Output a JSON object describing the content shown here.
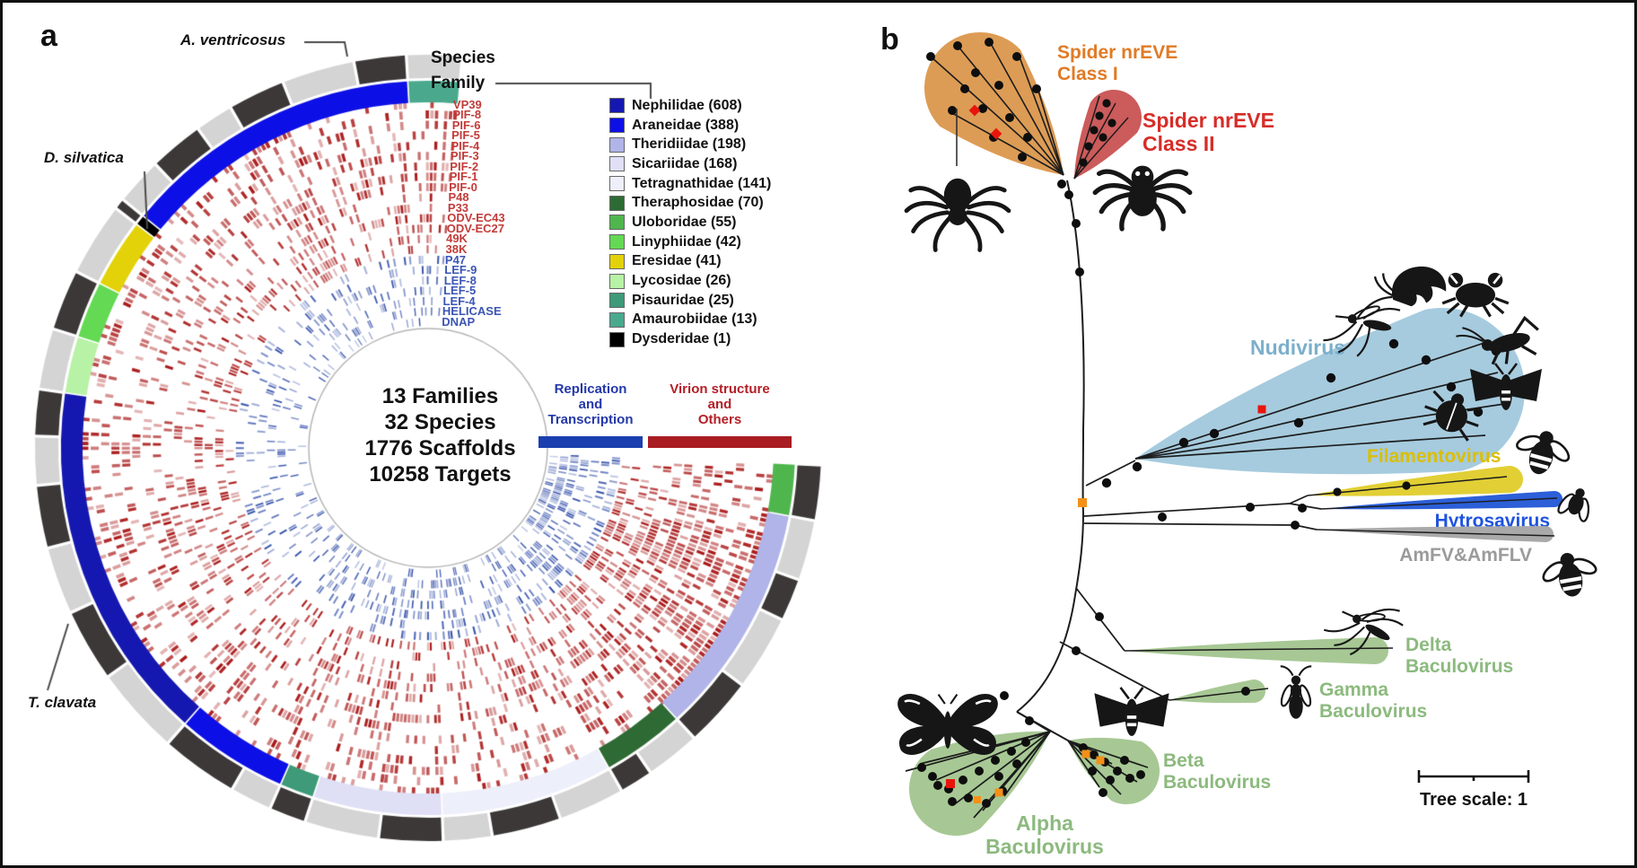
{
  "panel_a": {
    "label": "a",
    "ring_labels": {
      "species": "Species",
      "family": "Family"
    },
    "callouts": [
      {
        "id": "a_ventricosus",
        "label": "A. ventricosus"
      },
      {
        "id": "d_silvatica",
        "label": "D. silvatica"
      },
      {
        "id": "t_clavata",
        "label": "T. clavata"
      }
    ],
    "center_stats": [
      "13 Families",
      "32 Species",
      "1776 Scaffolds",
      "10258 Targets"
    ],
    "gene_groups": [
      {
        "id": "replication",
        "label_lines": [
          "Replication",
          "and",
          "Transcription"
        ],
        "text_color": "#2438a8",
        "bar_color": "#1b3fae",
        "genes": [
          "P47",
          "LEF-9",
          "LEF-8",
          "LEF-5",
          "LEF-4",
          "HELICASE",
          "DNAP"
        ],
        "gene_label_color": "#3b55b5"
      },
      {
        "id": "virion",
        "label_lines": [
          "Virion structure",
          "and",
          "Others"
        ],
        "text_color": "#b41f26",
        "bar_color": "#a81c22",
        "genes": [
          "VP39",
          "PIF-8",
          "PIF-6",
          "PIF-5",
          "PIF-4",
          "PIF-3",
          "PIF-2",
          "PIF-1",
          "PIF-0",
          "P48",
          "P33",
          "ODV-EC43",
          "ODV-EC27",
          "49K",
          "38K"
        ],
        "gene_label_color": "#c23b38"
      }
    ],
    "tracks_outer_to_inner": [
      "VP39",
      "PIF-8",
      "PIF-6",
      "PIF-5",
      "PIF-4",
      "PIF-3",
      "PIF-2",
      "PIF-1",
      "PIF-0",
      "P48",
      "P33",
      "ODV-EC43",
      "ODV-EC27",
      "49K",
      "38K",
      "P47",
      "LEF-9",
      "LEF-8",
      "LEF-5",
      "LEF-4",
      "HELICASE",
      "DNAP"
    ],
    "legend_families": [
      {
        "name": "Nephilidae",
        "count": 608,
        "color": "#1518b0"
      },
      {
        "name": "Araneidae",
        "count": 388,
        "color": "#0d10e6"
      },
      {
        "name": "Theridiidae",
        "count": 198,
        "color": "#b0b4e8"
      },
      {
        "name": "Sicariidae",
        "count": 168,
        "color": "#dfe0f5"
      },
      {
        "name": "Tetragnathidae",
        "count": 141,
        "color": "#edeffa"
      },
      {
        "name": "Theraphosidae",
        "count": 70,
        "color": "#2e6b34"
      },
      {
        "name": "Uloboridae",
        "count": 55,
        "color": "#4fb64e"
      },
      {
        "name": "Linyphiidae",
        "count": 42,
        "color": "#63d954"
      },
      {
        "name": "Eresidae",
        "count": 41,
        "color": "#e3d20a"
      },
      {
        "name": "Lycosidae",
        "count": 26,
        "color": "#b8f2a6"
      },
      {
        "name": "Pisauridae",
        "count": 25,
        "color": "#3e9a78"
      },
      {
        "name": "Amaurobiidae",
        "count": 13,
        "color": "#4aa98c"
      },
      {
        "name": "Dysderidae",
        "count": 1,
        "color": "#000000"
      }
    ],
    "family_ring_clockwise": [
      {
        "family": "Uloboridae",
        "frac": 0.03,
        "species": 1,
        "dens_red": 0.55,
        "dens_blue": 0.6
      },
      {
        "family": "Theridiidae",
        "frac": 0.135,
        "species": 4,
        "dens_red": 0.85,
        "dens_blue": 0.62
      },
      {
        "family": "Theraphosidae",
        "frac": 0.048,
        "species": 2,
        "dens_red": 0.62,
        "dens_blue": 0.48
      },
      {
        "family": "Tetragnathidae",
        "frac": 0.1,
        "species": 3,
        "dens_red": 0.42,
        "dens_blue": 0.42
      },
      {
        "family": "Sicariidae",
        "frac": 0.075,
        "species": 2,
        "dens_red": 0.52,
        "dens_blue": 0.45
      },
      {
        "family": "Pisauridae",
        "frac": 0.02,
        "species": 1,
        "dens_red": 0.38,
        "dens_blue": 0.3
      },
      {
        "family": "Araneidae",
        "frac": 0.065,
        "species": 2,
        "dens_red": 0.5,
        "dens_blue": 0.32
      },
      {
        "family": "Nephilidae",
        "frac": 0.21,
        "species": 6,
        "dens_red": 0.45,
        "dens_blue": 0.28
      },
      {
        "family": "Lycosidae",
        "frac": 0.033,
        "species": 1,
        "dens_red": 0.33,
        "dens_blue": 0.2
      },
      {
        "family": "Linyphiidae",
        "frac": 0.033,
        "species": 1,
        "dens_red": 0.38,
        "dens_blue": 0.24
      },
      {
        "family": "Eresidae",
        "frac": 0.04,
        "species": 1,
        "dens_red": 0.4,
        "dens_blue": 0.28
      },
      {
        "family": "Dysderidae",
        "frac": 0.006,
        "species": 1,
        "dens_red": 0.3,
        "dens_blue": 0.2
      },
      {
        "family": "Araneidae",
        "frac": 0.175,
        "species": 6,
        "dens_red": 0.5,
        "dens_blue": 0.3
      },
      {
        "family": "Amaurobiidae",
        "frac": 0.03,
        "species": 1,
        "dens_red": 0.45,
        "dens_blue": 0.35
      }
    ],
    "species_ring_colors": {
      "dark": "#3c3838",
      "light": "#d4d4d4"
    },
    "heat_colors": {
      "red": "170,25,25",
      "blue": "52,80,170"
    }
  },
  "panel_b": {
    "label": "b",
    "clades": [
      {
        "id": "nreve1",
        "name": "Spider nrEVE Class I",
        "label_lines": [
          "Spider nrEVE",
          "Class I"
        ],
        "text_color": "#e07b26",
        "fill": "#dd9c55"
      },
      {
        "id": "nreve2",
        "name": "Spider nrEVE Class II",
        "label_lines": [
          "Spider nrEVE",
          "Class II"
        ],
        "text_color": "#d62d28",
        "fill": "#cc5b5b"
      },
      {
        "id": "nudi",
        "name": "Nudivirus",
        "label_lines": [
          "Nudivirus"
        ],
        "text_color": "#7bafcc",
        "fill": "#a6cbde"
      },
      {
        "id": "filam",
        "name": "Filamentovirus",
        "label_lines": [
          "Filamentovirus"
        ],
        "text_color": "#ddbe00",
        "fill": "#e2cf35"
      },
      {
        "id": "hytro",
        "name": "Hytrosavirus",
        "label_lines": [
          "Hytrosavirus"
        ],
        "text_color": "#1e53e0",
        "fill": "#2c5fd8"
      },
      {
        "id": "amfv",
        "name": "AmFV&AmFLV",
        "label_lines": [
          "AmFV&AmFLV"
        ],
        "text_color": "#9b9b9b",
        "fill": "#a9a9a9"
      },
      {
        "id": "delta",
        "name": "Delta Baculovirus",
        "label_lines": [
          "Delta",
          "Baculovirus"
        ],
        "text_color": "#8cba7e",
        "fill": "#a7c894"
      },
      {
        "id": "gamma",
        "name": "Gamma Baculovirus",
        "label_lines": [
          "Gamma",
          "Baculovirus"
        ],
        "text_color": "#8cba7e",
        "fill": "#a7c894"
      },
      {
        "id": "beta",
        "name": "Beta Baculovirus",
        "label_lines": [
          "Beta",
          "Baculovirus"
        ],
        "text_color": "#8cba7e",
        "fill": "#a7c894"
      },
      {
        "id": "alpha",
        "name": "Alpha Baculovirus",
        "label_lines": [
          "Alpha",
          "Baculovirus"
        ],
        "text_color": "#8cba7e",
        "fill": "#a7c894"
      }
    ],
    "node_colors": {
      "support_dot": "#0e0e0e",
      "orange_mark": "#f39019",
      "red_mark": "#e8150d"
    },
    "fauna_icons": [
      "hanging-spider",
      "jumping-spider",
      "mosquito",
      "shrimp",
      "crab",
      "cricket",
      "moth",
      "beetle",
      "honeybee",
      "fly",
      "wasp",
      "butterfly"
    ],
    "tree_scale": {
      "label": "Tree scale: 1",
      "value": 1
    }
  },
  "chart_data": [
    {
      "type": "heatmap",
      "layout": "circular",
      "title": "Spider nrEVE targets across baculovirus core genes (panel a)",
      "tracks_outer_to_inner": [
        "VP39",
        "PIF-8",
        "PIF-6",
        "PIF-5",
        "PIF-4",
        "PIF-3",
        "PIF-2",
        "PIF-1",
        "PIF-0",
        "P48",
        "P33",
        "ODV-EC43",
        "ODV-EC27",
        "49K",
        "38K",
        "P47",
        "LEF-9",
        "LEF-8",
        "LEF-5",
        "LEF-4",
        "HELICASE",
        "DNAP"
      ],
      "track_groups": {
        "virion_structure_and_others": 15,
        "replication_and_transcription": 7
      },
      "categories": [
        "Nephilidae",
        "Araneidae",
        "Theridiidae",
        "Sicariidae",
        "Tetragnathidae",
        "Theraphosidae",
        "Uloboridae",
        "Linyphiidae",
        "Eresidae",
        "Lycosidae",
        "Pisauridae",
        "Amaurobiidae",
        "Dysderidae"
      ],
      "values": [
        608,
        388,
        198,
        168,
        141,
        70,
        55,
        42,
        41,
        26,
        25,
        13,
        1
      ],
      "totals": {
        "families": 13,
        "species": 32,
        "scaffolds": 1776,
        "targets": 10258
      },
      "rings": [
        "Species",
        "Family"
      ],
      "highlighted_species": [
        "A. ventricosus",
        "D. silvatica",
        "T. clavata"
      ]
    },
    {
      "type": "tree",
      "layout": "unrooted",
      "title": "Phylogeny of nrEVEs and large dsDNA viruses (panel b)",
      "clades": [
        "Spider nrEVE Class I",
        "Spider nrEVE Class II",
        "Nudivirus",
        "Filamentovirus",
        "Hytrosavirus",
        "AmFV&AmFLV",
        "Delta Baculovirus",
        "Gamma Baculovirus",
        "Beta Baculovirus",
        "Alpha Baculovirus"
      ],
      "scale_bar": 1,
      "legend_position": "bottom-right"
    }
  ]
}
